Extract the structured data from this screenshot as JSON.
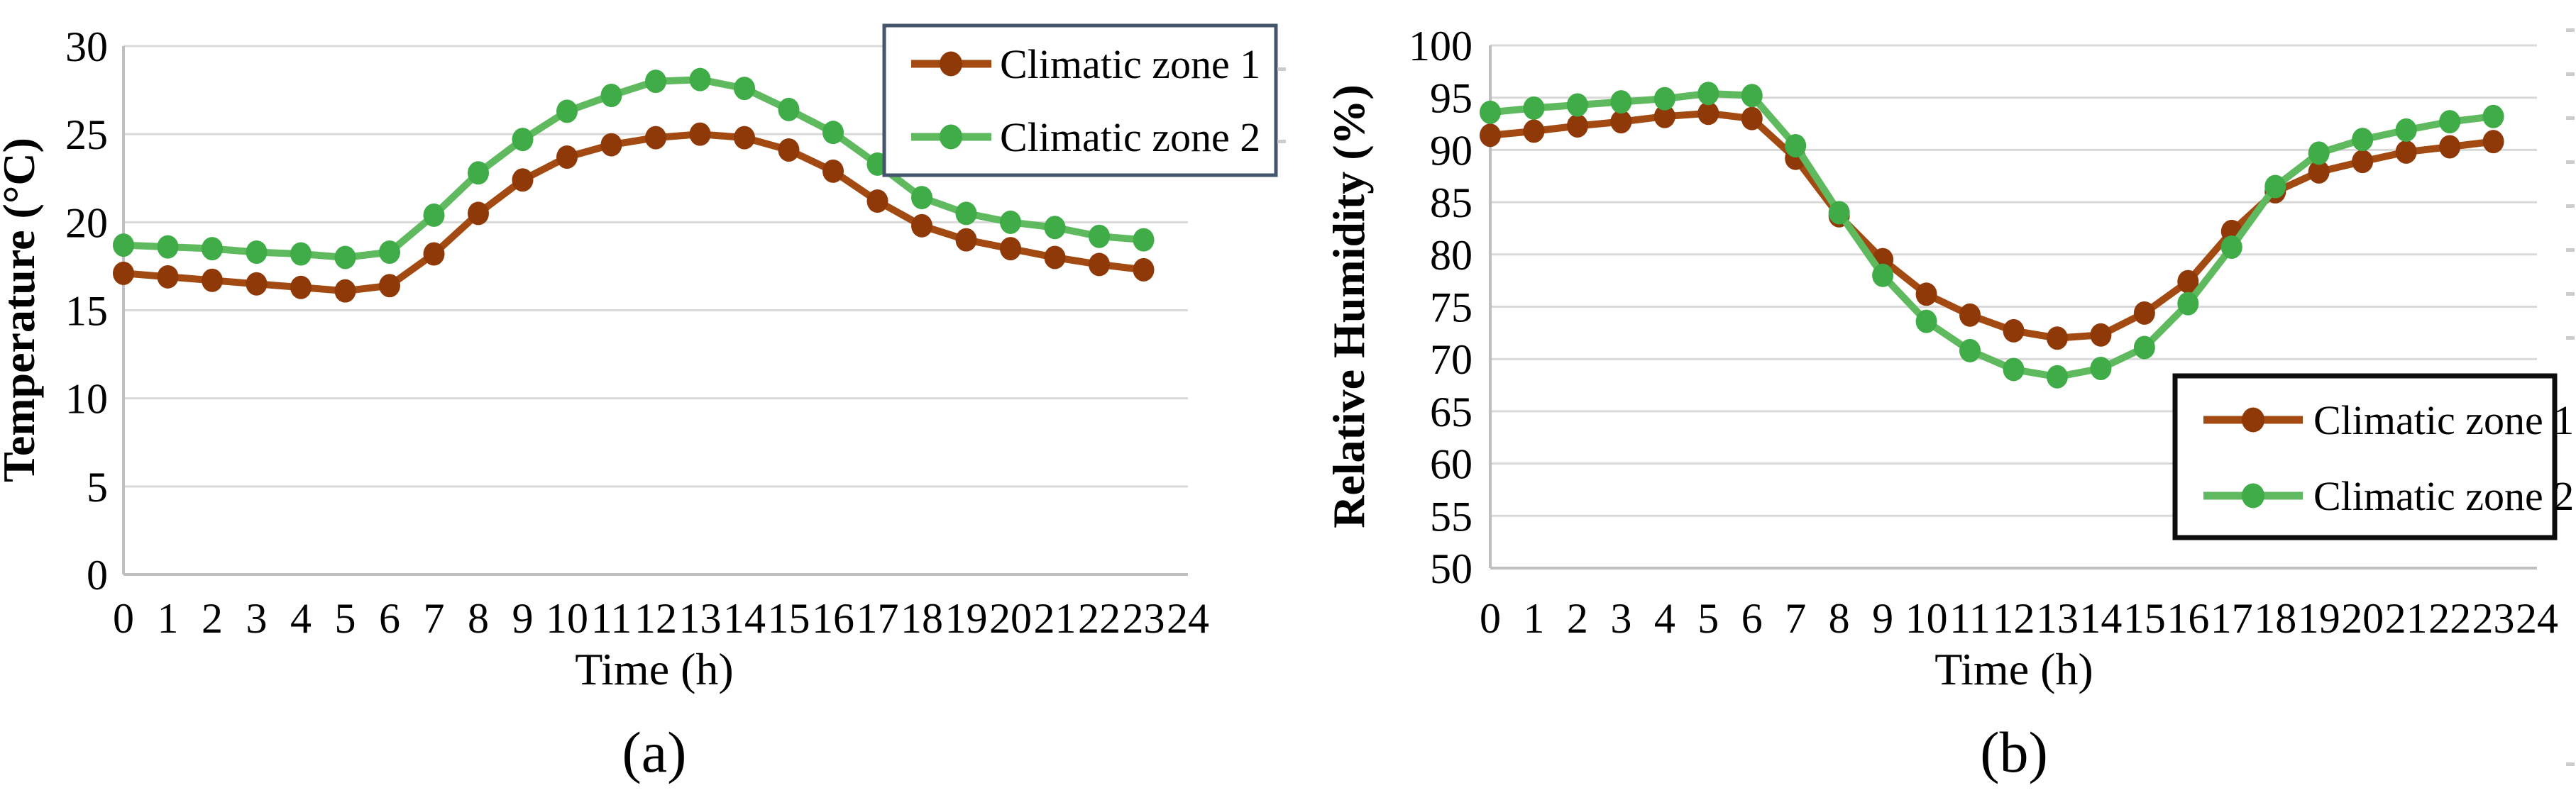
{
  "figure": {
    "description": "Two line charts of daily profiles for two climatic zones",
    "colors": {
      "background": "#ffffff",
      "gridline": "#d9d9d9",
      "axis_line": "#bfbfbf",
      "text": "#000000",
      "legend_border_a": "#44546a",
      "legend_border_b": "#0d0d0d",
      "zone1_line": "#a34a12",
      "zone1_marker": "#8f3908",
      "zone2_line": "#5fb95f",
      "zone2_marker": "#3fac48"
    }
  },
  "chart_data": [
    {
      "id": "chart-a",
      "type": "line",
      "title": "",
      "caption": "(a)",
      "xlabel": "Time (h)",
      "ylabel": "Temperature (°C)",
      "xlim": [
        0,
        24
      ],
      "ylim": [
        0,
        30
      ],
      "xticks": [
        0,
        1,
        2,
        3,
        4,
        5,
        6,
        7,
        8,
        9,
        10,
        11,
        12,
        13,
        14,
        15,
        16,
        17,
        18,
        19,
        20,
        21,
        22,
        23,
        24
      ],
      "yticks": [
        0,
        5,
        10,
        15,
        20,
        25,
        30
      ],
      "grid": "horizontal",
      "legend_position": "top-right",
      "x": [
        0,
        1,
        2,
        3,
        4,
        5,
        6,
        7,
        8,
        9,
        10,
        11,
        12,
        13,
        14,
        15,
        16,
        17,
        18,
        19,
        20,
        21,
        22,
        23
      ],
      "series": [
        {
          "name": "Climatic zone 1",
          "values": [
            17.1,
            16.9,
            16.7,
            16.5,
            16.3,
            16.1,
            16.4,
            18.2,
            20.5,
            22.4,
            23.7,
            24.4,
            24.8,
            25.0,
            24.8,
            24.1,
            22.9,
            21.2,
            19.8,
            19.0,
            18.5,
            18.0,
            17.6,
            17.3
          ]
        },
        {
          "name": "Climatic zone 2",
          "values": [
            18.7,
            18.6,
            18.5,
            18.3,
            18.2,
            18.0,
            18.3,
            20.4,
            22.8,
            24.7,
            26.3,
            27.2,
            28.0,
            28.1,
            27.6,
            26.4,
            25.1,
            23.3,
            21.4,
            20.5,
            20.0,
            19.7,
            19.2,
            19.0
          ]
        }
      ]
    },
    {
      "id": "chart-b",
      "type": "line",
      "title": "",
      "caption": "(b)",
      "xlabel": "Time (h)",
      "ylabel": "Relative Humidity (%)",
      "xlim": [
        0,
        24
      ],
      "ylim": [
        50,
        100
      ],
      "xticks": [
        0,
        1,
        2,
        3,
        4,
        5,
        6,
        7,
        8,
        9,
        10,
        11,
        12,
        13,
        14,
        15,
        16,
        17,
        18,
        19,
        20,
        21,
        22,
        23,
        24
      ],
      "yticks": [
        50,
        55,
        60,
        65,
        70,
        75,
        80,
        85,
        90,
        95,
        100
      ],
      "grid": "horizontal",
      "legend_position": "bottom-right",
      "x": [
        0,
        1,
        2,
        3,
        4,
        5,
        6,
        7,
        8,
        9,
        10,
        11,
        12,
        13,
        14,
        15,
        16,
        17,
        18,
        19,
        20,
        21,
        22,
        23
      ],
      "series": [
        {
          "name": "Climatic zone 1",
          "values": [
            91.4,
            91.8,
            92.3,
            92.7,
            93.2,
            93.5,
            93.0,
            89.2,
            83.7,
            79.5,
            76.2,
            74.2,
            72.7,
            72.0,
            72.3,
            74.4,
            77.4,
            82.2,
            86.0,
            87.9,
            88.9,
            89.8,
            90.3,
            90.8
          ]
        },
        {
          "name": "Climatic zone 2",
          "values": [
            93.6,
            94.0,
            94.3,
            94.6,
            94.9,
            95.4,
            95.2,
            90.4,
            84.0,
            78.0,
            73.6,
            70.8,
            69.0,
            68.3,
            69.1,
            71.1,
            75.3,
            80.7,
            86.5,
            89.7,
            91.0,
            91.9,
            92.7,
            93.2
          ]
        }
      ]
    }
  ]
}
